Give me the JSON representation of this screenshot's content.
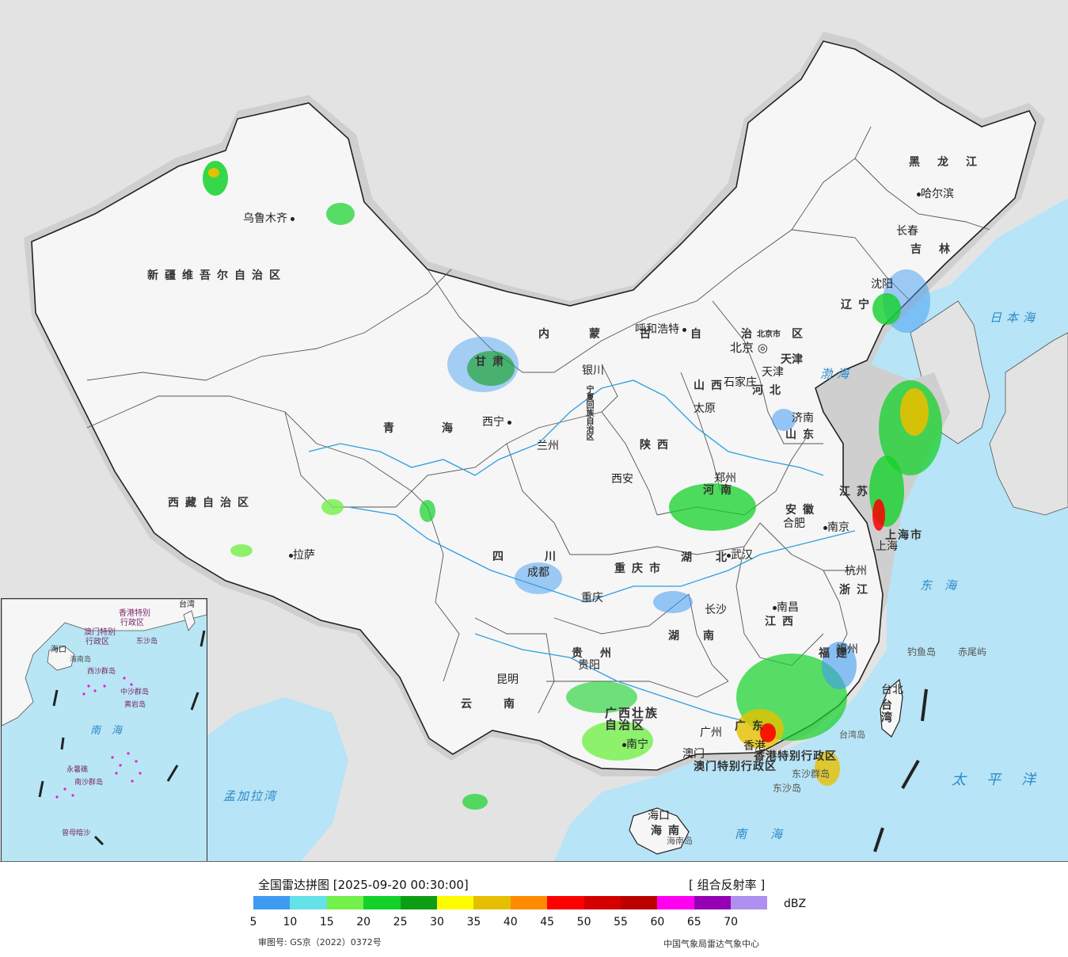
{
  "legend": {
    "title": "全国雷达拼图 [2025-09-20 00:30:00]",
    "product": "[ 组合反射率 ]",
    "unit": "dBZ",
    "colors": [
      "#3f9bf2",
      "#65e1e8",
      "#74f04a",
      "#14d12a",
      "#0e9e16",
      "#fdfd00",
      "#e6c000",
      "#ff8c00",
      "#fd0000",
      "#d40000",
      "#bb0000",
      "#ff00f0",
      "#9600b4",
      "#ad90f0"
    ],
    "ticks": [
      "5",
      "10",
      "15",
      "20",
      "25",
      "30",
      "35",
      "40",
      "45",
      "50",
      "55",
      "60",
      "65",
      "70"
    ]
  },
  "footer": {
    "approval_no": "审图号: GS京（2022）0372号",
    "source": "中国气象局雷达气象中心"
  },
  "cities": [
    "乌鲁木齐",
    "拉萨",
    "西宁",
    "兰州",
    "银川",
    "呼和浩特",
    "北京",
    "天津",
    "石家庄",
    "太原",
    "济南",
    "郑州",
    "西安",
    "合肥",
    "南京",
    "上海",
    "杭州",
    "武汉",
    "长沙",
    "南昌",
    "福州",
    "成都",
    "重庆",
    "贵阳",
    "昆明",
    "南宁",
    "广州",
    "香港",
    "澳门",
    "海口",
    "台北",
    "哈尔滨",
    "长春",
    "沈阳"
  ],
  "provinces": [
    "新疆维吾尔自治区",
    "西藏自治区",
    "青海",
    "甘肃",
    "内蒙古自治区",
    "黑龙江",
    "吉林",
    "辽宁",
    "河北",
    "山西",
    "山东",
    "河南",
    "陕西",
    "宁夏回族自治区",
    "四川",
    "重庆市",
    "湖北",
    "安徽",
    "江苏",
    "上海市",
    "浙江",
    "湖南",
    "江西",
    "福建",
    "贵州",
    "云南",
    "广西壮族自治区",
    "广东",
    "海南",
    "台湾",
    "香港特别行政区",
    "澳门特别行政区",
    "北京市",
    "天津"
  ],
  "seas": [
    "日本海",
    "渤海",
    "东海",
    "太平洋",
    "南海",
    "孟加拉湾"
  ],
  "islands": [
    "钓鱼岛",
    "赤尾屿",
    "东沙群岛",
    "东沙岛",
    "台湾岛",
    "海南岛"
  ],
  "inset": {
    "labels": [
      "台湾",
      "香港特别",
      "行政区",
      "澳门特别",
      "行政区",
      "东沙岛",
      "海口",
      "海南岛",
      "西沙群岛",
      "中沙群岛",
      "黄岩岛",
      "南海",
      "南沙群岛",
      "曾母暗沙",
      "永暑礁"
    ]
  }
}
